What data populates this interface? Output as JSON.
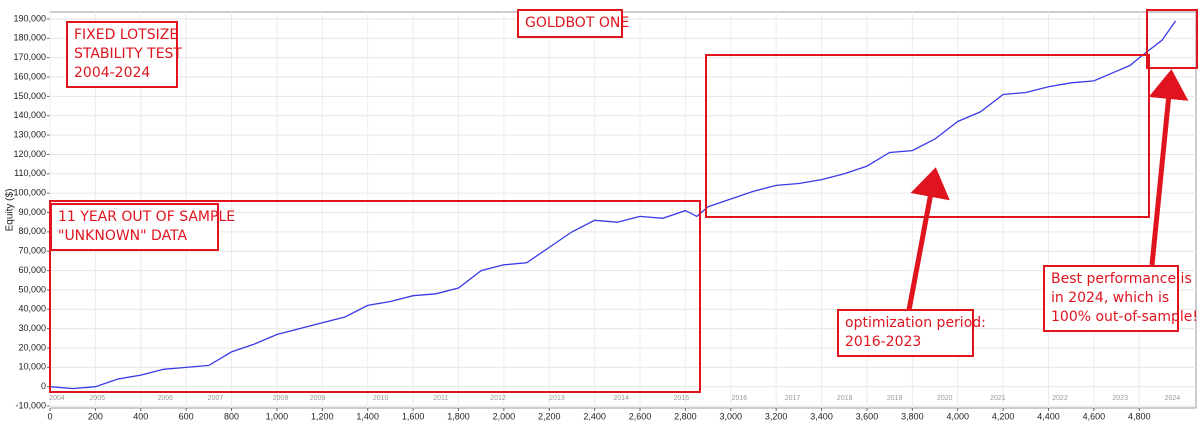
{
  "chart_data": {
    "type": "line",
    "y_label": "Equity ($)",
    "xlim": [
      0,
      5050
    ],
    "ylim": [
      -11000,
      193600
    ],
    "xticks": [
      0,
      200,
      400,
      600,
      800,
      {
        "value": 1000,
        "label": "1,000"
      },
      {
        "value": 1200,
        "label": "1,200"
      },
      {
        "value": 1400,
        "label": "1,400"
      },
      {
        "value": 1600,
        "label": "1,600"
      },
      {
        "value": 1800,
        "label": "1,800"
      },
      {
        "value": 2000,
        "label": "2,000"
      },
      {
        "value": 2200,
        "label": "2,200"
      },
      {
        "value": 2400,
        "label": "2,400"
      },
      {
        "value": 2600,
        "label": "2,600"
      },
      {
        "value": 2800,
        "label": "2,800"
      },
      {
        "value": 3000,
        "label": "3,000"
      },
      {
        "value": 3200,
        "label": "3,200"
      },
      {
        "value": 3400,
        "label": "3,400"
      },
      {
        "value": 3600,
        "label": "3,600"
      },
      {
        "value": 3800,
        "label": "3,800"
      },
      {
        "value": 4000,
        "label": "4,000"
      },
      {
        "value": 4200,
        "label": "4,200"
      },
      {
        "value": 4400,
        "label": "4,400"
      },
      {
        "value": 4600,
        "label": "4,600"
      },
      {
        "value": 4800,
        "label": "4,800"
      }
    ],
    "yticks": [
      {
        "value": -10000,
        "label": "-10,000"
      },
      0,
      {
        "value": 10000,
        "label": "10,000"
      },
      {
        "value": 20000,
        "label": "20,000"
      },
      {
        "value": 30000,
        "label": "30,000"
      },
      {
        "value": 40000,
        "label": "40,000"
      },
      {
        "value": 50000,
        "label": "50,000"
      },
      {
        "value": 60000,
        "label": "60,000"
      },
      {
        "value": 70000,
        "label": "70,000"
      },
      {
        "value": 80000,
        "label": "80,000"
      },
      {
        "value": 90000,
        "label": "90,000"
      },
      {
        "value": 100000,
        "label": "100,000"
      },
      {
        "value": 110000,
        "label": "110,000"
      },
      {
        "value": 120000,
        "label": "120,000"
      },
      {
        "value": 130000,
        "label": "130,000"
      },
      {
        "value": 140000,
        "label": "140,000"
      },
      {
        "value": 150000,
        "label": "150,000"
      },
      {
        "value": 160000,
        "label": "160,000"
      },
      {
        "value": 170000,
        "label": "170,000"
      },
      {
        "value": 180000,
        "label": "180,000"
      },
      {
        "value": 190000,
        "label": "190,000"
      }
    ],
    "year_ticks": [
      {
        "value": 31,
        "label": "2004"
      },
      {
        "value": 208,
        "label": "2005"
      },
      {
        "value": 508,
        "label": "2006"
      },
      {
        "value": 729,
        "label": "2007"
      },
      {
        "value": 1016,
        "label": "2008"
      },
      {
        "value": 1179,
        "label": "2009"
      },
      {
        "value": 1457,
        "label": "2010"
      },
      {
        "value": 1722,
        "label": "2011"
      },
      {
        "value": 1974,
        "label": "2012"
      },
      {
        "value": 2234,
        "label": "2013"
      },
      {
        "value": 2517,
        "label": "2014"
      },
      {
        "value": 2782,
        "label": "2015"
      },
      {
        "value": 3038,
        "label": "2016"
      },
      {
        "value": 3272,
        "label": "2017"
      },
      {
        "value": 3502,
        "label": "2018"
      },
      {
        "value": 3722,
        "label": "2019"
      },
      {
        "value": 3943,
        "label": "2020"
      },
      {
        "value": 4177,
        "label": "2021"
      },
      {
        "value": 4451,
        "label": "2022"
      },
      {
        "value": 4716,
        "label": "2023"
      },
      {
        "value": 4946,
        "label": "2024"
      }
    ],
    "grid": true,
    "series": [
      {
        "color": "#3a3ae8",
        "x": [
          0,
          100,
          200,
          300,
          400,
          500,
          600,
          700,
          800,
          900,
          1000,
          1100,
          1200,
          1300,
          1400,
          1500,
          1600,
          1700,
          1800,
          1900,
          2000,
          2100,
          2200,
          2300,
          2400,
          2500,
          2600,
          2700,
          2800,
          2850,
          2900,
          3000,
          3100,
          3200,
          3300,
          3400,
          3500,
          3600,
          3700,
          3800,
          3900,
          4000,
          4100,
          4200,
          4300,
          4400,
          4500,
          4600,
          4700,
          4760,
          4800,
          4900,
          4960
        ],
        "values": [
          0,
          -1000,
          0,
          4000,
          6000,
          9000,
          10000,
          11000,
          18000,
          22000,
          27000,
          30000,
          33000,
          36000,
          42000,
          44000,
          47000,
          48000,
          51000,
          60000,
          63000,
          64000,
          72000,
          80000,
          86000,
          85000,
          88000,
          87000,
          91000,
          88000,
          93000,
          97000,
          101000,
          104000,
          105000,
          107000,
          110000,
          114000,
          121000,
          122000,
          128000,
          137000,
          142000,
          151000,
          152000,
          155000,
          157000,
          158000,
          163000,
          166000,
          170000,
          179000,
          189000
        ]
      }
    ],
    "annotations": [
      {
        "lines": [
          "GOLDBOT ONE"
        ]
      },
      {
        "lines": [
          "FIXED LOTSIZE",
          "STABILITY TEST",
          "2004-2024"
        ]
      },
      {
        "lines": [
          "11 YEAR OUT OF SAMPLE",
          "\"UNKNOWN\" DATA"
        ]
      },
      {
        "lines": [
          "optimization period:",
          "2016-2023"
        ]
      },
      {
        "lines": [
          "Best performance is",
          "in 2024, which is",
          "100% out-of-sample!"
        ]
      }
    ]
  }
}
